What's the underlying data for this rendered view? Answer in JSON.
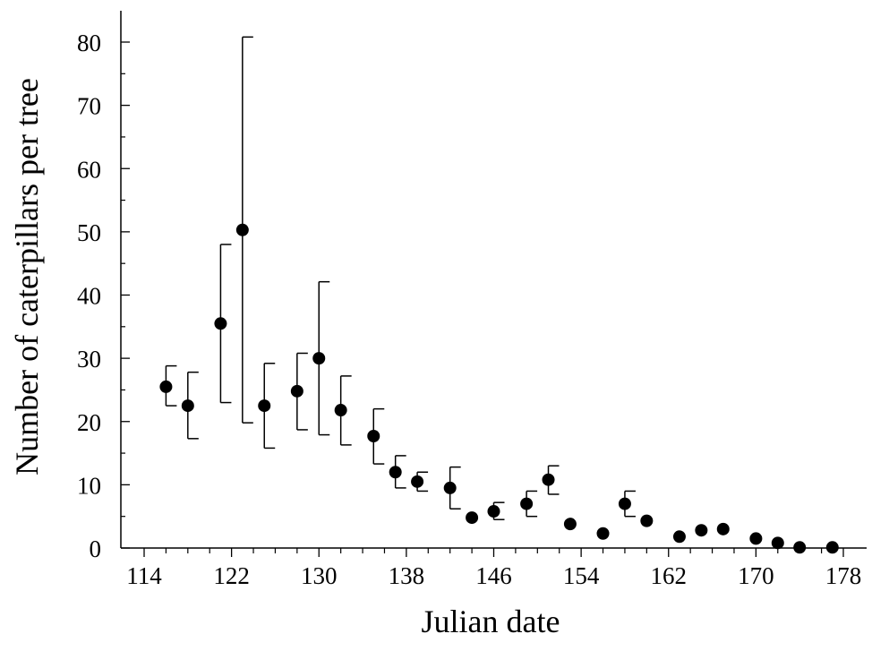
{
  "chart_data": {
    "type": "scatter",
    "title": "",
    "xlabel": "Julian date",
    "ylabel": "Number of caterpillars per tree",
    "xlim": [
      114,
      178
    ],
    "ylim": [
      0,
      85
    ],
    "x_ticks": [
      114,
      122,
      130,
      138,
      146,
      154,
      162,
      170,
      178
    ],
    "y_ticks": [
      0,
      10,
      20,
      30,
      40,
      50,
      60,
      70,
      80
    ],
    "grid": false,
    "legend": "none",
    "colors": {
      "marker": "#000000",
      "axis": "#000000",
      "background": "#ffffff"
    },
    "points": [
      {
        "x": 116,
        "y": 25.5,
        "low": 22.5,
        "high": 28.8
      },
      {
        "x": 118,
        "y": 22.5,
        "low": 17.3,
        "high": 27.8
      },
      {
        "x": 121,
        "y": 35.5,
        "low": 23.0,
        "high": 48.0
      },
      {
        "x": 123,
        "y": 50.3,
        "low": 19.8,
        "high": 80.8
      },
      {
        "x": 125,
        "y": 22.5,
        "low": 15.8,
        "high": 29.2
      },
      {
        "x": 128,
        "y": 24.8,
        "low": 18.7,
        "high": 30.8
      },
      {
        "x": 130,
        "y": 30.0,
        "low": 17.9,
        "high": 42.1
      },
      {
        "x": 132,
        "y": 21.8,
        "low": 16.3,
        "high": 27.2
      },
      {
        "x": 135,
        "y": 17.7,
        "low": 13.3,
        "high": 22.0
      },
      {
        "x": 137,
        "y": 12.0,
        "low": 9.5,
        "high": 14.6
      },
      {
        "x": 139,
        "y": 10.5,
        "low": 9.0,
        "high": 12.0
      },
      {
        "x": 142,
        "y": 9.5,
        "low": 6.2,
        "high": 12.8
      },
      {
        "x": 144,
        "y": 4.8
      },
      {
        "x": 146,
        "y": 5.8,
        "low": 4.5,
        "high": 7.2
      },
      {
        "x": 149,
        "y": 7.0,
        "low": 5.0,
        "high": 9.0
      },
      {
        "x": 151,
        "y": 10.8,
        "low": 8.5,
        "high": 13.0
      },
      {
        "x": 153,
        "y": 3.8
      },
      {
        "x": 156,
        "y": 2.3
      },
      {
        "x": 158,
        "y": 7.0,
        "low": 5.0,
        "high": 9.0
      },
      {
        "x": 160,
        "y": 4.3
      },
      {
        "x": 163,
        "y": 1.8
      },
      {
        "x": 165,
        "y": 2.8
      },
      {
        "x": 167,
        "y": 3.0
      },
      {
        "x": 170,
        "y": 1.5
      },
      {
        "x": 172,
        "y": 0.8
      },
      {
        "x": 174,
        "y": 0.1
      },
      {
        "x": 177,
        "y": 0.1
      }
    ]
  }
}
